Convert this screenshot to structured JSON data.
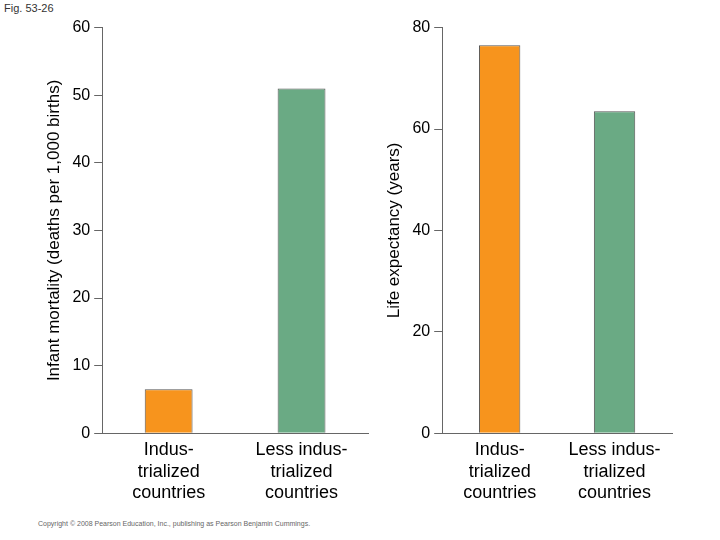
{
  "figure_label": "Fig. 53-26",
  "copyright": "Copyright © 2008 Pearson Education, Inc., publishing as Pearson Benjamin Cummings.",
  "chart_data": [
    {
      "type": "bar",
      "y_label": "Infant mortality (deaths per 1,000 births)",
      "categories": [
        [
          "Indus-",
          "trialized",
          "countries"
        ],
        [
          "Less indus-",
          "trialized",
          "countries"
        ]
      ],
      "values": [
        6.5,
        51
      ],
      "colors": [
        "#f7941d",
        "#6aaa84"
      ],
      "ylim": [
        0,
        60
      ],
      "yticks": [
        0,
        10,
        20,
        30,
        40,
        50,
        60
      ],
      "grid": false
    },
    {
      "type": "bar",
      "y_label": "Life expectancy (years)",
      "categories": [
        [
          "Indus-",
          "trialized",
          "countries"
        ],
        [
          "Less indus-",
          "trialized",
          "countries"
        ]
      ],
      "values": [
        76.5,
        63.5
      ],
      "colors": [
        "#f7941d",
        "#6aaa84"
      ],
      "ylim": [
        0,
        80
      ],
      "yticks": [
        0,
        20,
        40,
        60,
        80
      ],
      "grid": false
    }
  ]
}
